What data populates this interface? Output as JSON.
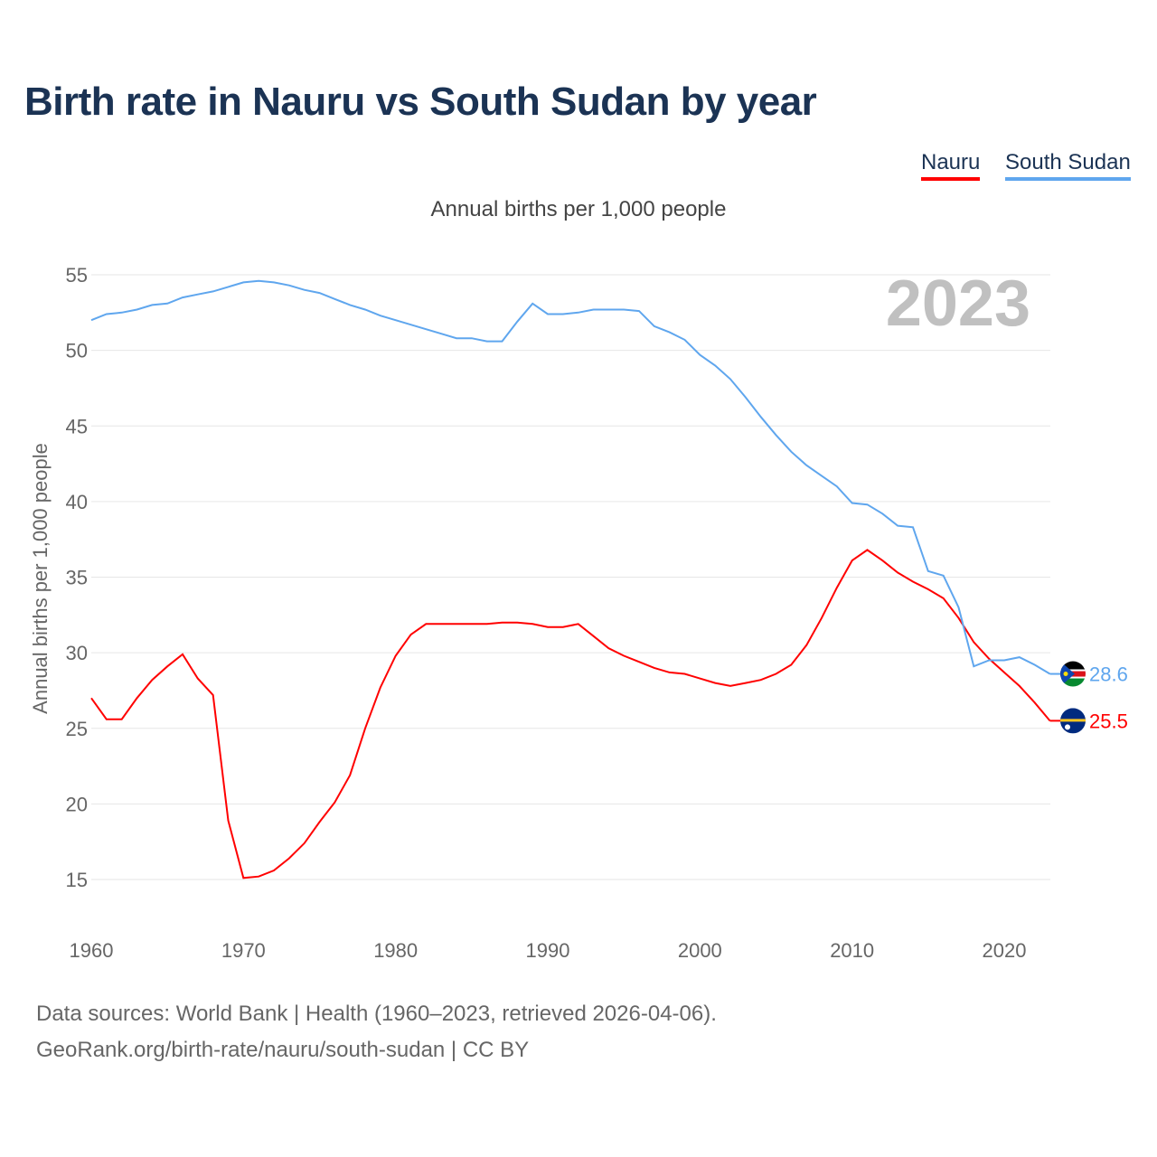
{
  "title": "Birth rate in Nauru vs South Sudan by year",
  "legend": [
    {
      "name": "Nauru",
      "color": "#ff0000"
    },
    {
      "name": "South Sudan",
      "color": "#5fa6ee"
    }
  ],
  "subtitle": "Annual births per 1,000 people",
  "footer": {
    "line1": "Data sources: World Bank | Health (1960–2023, retrieved 2026-04-06).",
    "line2": "GeoRank.org/birth-rate/nauru/south-sudan | CC BY"
  },
  "chart_data": {
    "type": "line",
    "title": "Birth rate in Nauru vs South Sudan by year",
    "ylabel": "Annual births per 1,000 people",
    "xlabel": "",
    "year_label": "2023",
    "xlim": [
      1960,
      2023
    ],
    "ylim": [
      12,
      56
    ],
    "xticks": [
      1960,
      1970,
      1980,
      1990,
      2000,
      2010,
      2020
    ],
    "yticks": [
      15,
      20,
      25,
      30,
      35,
      40,
      45,
      50,
      55
    ],
    "grid": true,
    "legend_position": "top-right",
    "x_start": 1960,
    "series": [
      {
        "name": "Nauru",
        "color": "#ff0000",
        "end_label": "25.5",
        "icon": "nauru-flag",
        "values": [
          27.0,
          25.6,
          25.6,
          27.0,
          28.2,
          29.1,
          29.9,
          28.3,
          27.2,
          18.9,
          15.1,
          15.2,
          15.6,
          16.4,
          17.4,
          18.8,
          20.1,
          21.9,
          25.0,
          27.7,
          29.8,
          31.2,
          31.9,
          31.9,
          31.9,
          31.9,
          31.9,
          32.0,
          32.0,
          31.9,
          31.7,
          31.7,
          31.9,
          31.1,
          30.3,
          29.8,
          29.4,
          29.0,
          28.7,
          28.6,
          28.3,
          28.0,
          27.8,
          28.0,
          28.2,
          28.6,
          29.2,
          30.5,
          32.3,
          34.3,
          36.1,
          36.8,
          36.1,
          35.3,
          34.7,
          34.2,
          33.6,
          32.3,
          30.7,
          29.6,
          28.7,
          27.8,
          26.7,
          25.5
        ]
      },
      {
        "name": "South Sudan",
        "color": "#5fa6ee",
        "end_label": "28.6",
        "icon": "south-sudan-flag",
        "values": [
          52.0,
          52.4,
          52.5,
          52.7,
          53.0,
          53.1,
          53.5,
          53.7,
          53.9,
          54.2,
          54.5,
          54.6,
          54.5,
          54.3,
          54.0,
          53.8,
          53.4,
          53.0,
          52.7,
          52.3,
          52.0,
          51.7,
          51.4,
          51.1,
          50.8,
          50.8,
          50.6,
          50.6,
          51.9,
          53.1,
          52.4,
          52.4,
          52.5,
          52.7,
          52.7,
          52.7,
          52.6,
          51.6,
          51.2,
          50.7,
          49.7,
          49.0,
          48.1,
          46.9,
          45.6,
          44.4,
          43.3,
          42.4,
          41.7,
          41.0,
          39.9,
          39.8,
          39.2,
          38.4,
          38.3,
          35.4,
          35.1,
          33.0,
          29.1,
          29.5,
          29.5,
          29.7,
          29.2,
          28.6
        ]
      }
    ]
  }
}
